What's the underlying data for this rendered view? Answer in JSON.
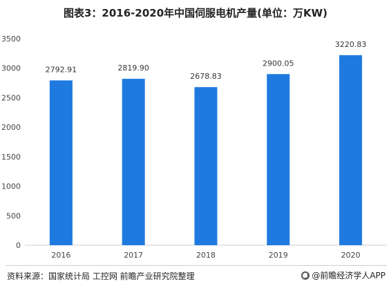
{
  "chart_data": {
    "type": "bar",
    "title": "图表3：2016-2020年中国伺服电机产量(单位：万KW)",
    "categories": [
      "2016",
      "2017",
      "2018",
      "2019",
      "2020"
    ],
    "values": [
      2792.91,
      2819.9,
      2678.83,
      2900.05,
      3220.83
    ],
    "value_labels": [
      "2792.91",
      "2819.90",
      "2678.83",
      "2900.05",
      "3220.83"
    ],
    "y_ticks": [
      "0",
      "500",
      "1000",
      "1500",
      "2000",
      "2500",
      "3000",
      "3500"
    ],
    "ylim": [
      0,
      3500
    ],
    "xlabel": "",
    "ylabel": "",
    "grid": false,
    "bar_color": "#1f7ae0"
  },
  "footer": {
    "source": "资料来源：国家统计局 工控网 前瞻产业研究院整理",
    "brand": "@前瞻经济学人APP"
  }
}
